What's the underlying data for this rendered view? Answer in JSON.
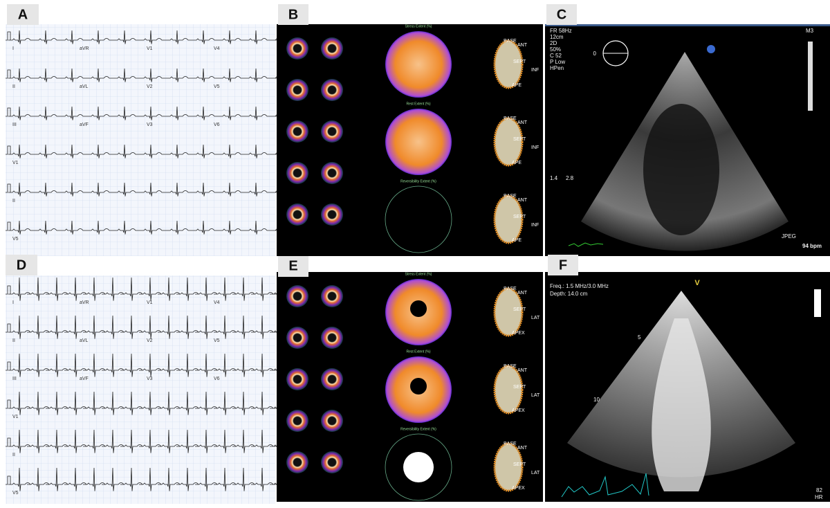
{
  "ecg_a": {
    "label": "A",
    "leads": [
      [
        "I",
        "aVR",
        "V1",
        "V4"
      ],
      [
        "II",
        "aVL",
        "V2",
        "V5"
      ],
      [
        "III",
        "aVF",
        "V3",
        "V6"
      ],
      [
        "V1"
      ],
      [
        "II"
      ],
      [
        "V5"
      ]
    ]
  },
  "spect_b": {
    "label": "B",
    "polar_titles": [
      "Stress Extent (%)",
      "Rest Extent (%)",
      "Reversibility Extent (%)"
    ],
    "view_labels": [
      "BASE",
      "ANT",
      "SEPT",
      "INF",
      "APE"
    ]
  },
  "echo_c": {
    "label": "C",
    "settings": [
      "FR 58Hz",
      "12cm",
      "2D",
      " 50%",
      "C 52",
      "P Low",
      "HPen"
    ],
    "marker": "M3",
    "angle": "0",
    "scale": [
      "1.4",
      "2.8"
    ],
    "format": "JPEG",
    "heart_rate": "94 bpm"
  },
  "ecg_d": {
    "label": "D",
    "leads": [
      [
        "I",
        "aVR",
        "V1",
        "V4"
      ],
      [
        "II",
        "aVL",
        "V2",
        "V5"
      ],
      [
        "III",
        "aVF",
        "V3",
        "V6"
      ],
      [
        "V1"
      ],
      [
        "II"
      ],
      [
        "V5"
      ]
    ]
  },
  "spect_e": {
    "label": "E",
    "polar_titles": [
      "Stress Extent (%)",
      "Rest Extent (%)",
      "Reversibility Extent (%)"
    ],
    "view_labels": [
      "BASE",
      "ANT",
      "SEPT",
      "LAT",
      "APEX"
    ]
  },
  "echo_f": {
    "label": "F",
    "freq": "Freq.: 1.5 MHz/3.0 MHz",
    "depth": "Depth: 14.0 cm",
    "marker": "V",
    "depth_marks": [
      "5",
      "10"
    ],
    "hr_value": "82",
    "hr_label": "HR"
  }
}
